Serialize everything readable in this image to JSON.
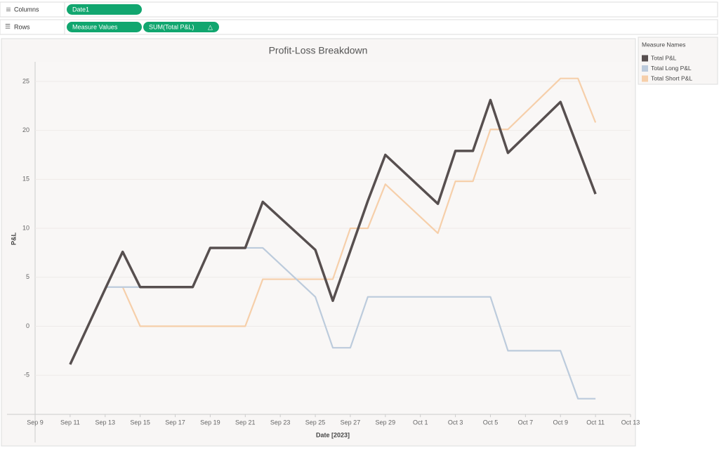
{
  "shelves": {
    "columns": {
      "label": "Columns",
      "pills": [
        "Date1"
      ]
    },
    "rows": {
      "label": "Rows",
      "pills": [
        "Measure Values",
        "SUM(Total P&L)"
      ],
      "delta": "△"
    }
  },
  "legend_title": "Measure Names",
  "chart_data": {
    "type": "line",
    "title": "Profit-Loss Breakdown",
    "x_label": "Date [2023]",
    "y_label": "P&L",
    "x": [
      "2023-09-11",
      "2023-09-13",
      "2023-09-14",
      "2023-09-15",
      "2023-09-18",
      "2023-09-19",
      "2023-09-21",
      "2023-09-22",
      "2023-09-25",
      "2023-09-26",
      "2023-09-27",
      "2023-09-28",
      "2023-09-29",
      "2023-10-02",
      "2023-10-03",
      "2023-10-04",
      "2023-10-05",
      "2023-10-06",
      "2023-10-09",
      "2023-10-10",
      "2023-10-11"
    ],
    "series": [
      {
        "name": "Total P&L",
        "color": "#574f4f",
        "values": [
          -3.9,
          3.8,
          7.6,
          4.0,
          4.0,
          8.0,
          8.0,
          12.7,
          7.8,
          2.6,
          7.7,
          12.8,
          17.5,
          12.5,
          17.9,
          17.9,
          23.1,
          17.7,
          22.9,
          18.2,
          13.5
        ]
      },
      {
        "name": "Total Long P&L",
        "color": "#bccbdc",
        "values": [
          null,
          4.0,
          4.0,
          4.0,
          4.0,
          8.0,
          8.0,
          8.0,
          3.0,
          -2.2,
          -2.2,
          3.0,
          3.0,
          3.0,
          3.0,
          3.0,
          3.0,
          -2.5,
          -2.5,
          -7.4,
          -7.4
        ]
      },
      {
        "name": "Total Short P&L",
        "color": "#f6cfaa",
        "values": [
          null,
          null,
          4.0,
          0,
          0,
          0,
          0,
          4.8,
          4.8,
          4.8,
          10.0,
          10.0,
          14.5,
          9.5,
          14.8,
          14.8,
          20.1,
          20.1,
          25.3,
          25.3,
          20.8
        ]
      }
    ],
    "xlim": [
      "2023-09-09",
      "2023-10-13"
    ],
    "xticks": [
      {
        "value": "2023-09-09",
        "label": "Sep 9"
      },
      {
        "value": "2023-09-11",
        "label": "Sep 11"
      },
      {
        "value": "2023-09-13",
        "label": "Sep 13"
      },
      {
        "value": "2023-09-15",
        "label": "Sep 15"
      },
      {
        "value": "2023-09-17",
        "label": "Sep 17"
      },
      {
        "value": "2023-09-19",
        "label": "Sep 19"
      },
      {
        "value": "2023-09-21",
        "label": "Sep 21"
      },
      {
        "value": "2023-09-23",
        "label": "Sep 23"
      },
      {
        "value": "2023-09-25",
        "label": "Sep 25"
      },
      {
        "value": "2023-09-27",
        "label": "Sep 27"
      },
      {
        "value": "2023-09-29",
        "label": "Sep 29"
      },
      {
        "value": "2023-10-01",
        "label": "Oct 1"
      },
      {
        "value": "2023-10-03",
        "label": "Oct 3"
      },
      {
        "value": "2023-10-05",
        "label": "Oct 5"
      },
      {
        "value": "2023-10-07",
        "label": "Oct 7"
      },
      {
        "value": "2023-10-09",
        "label": "Oct 9"
      },
      {
        "value": "2023-10-11",
        "label": "Oct 11"
      },
      {
        "value": "2023-10-13",
        "label": "Oct 13"
      }
    ],
    "ylim": [
      -9,
      27
    ],
    "yticks": [
      -5,
      0,
      5,
      10,
      15,
      20,
      25
    ],
    "grid": true
  }
}
